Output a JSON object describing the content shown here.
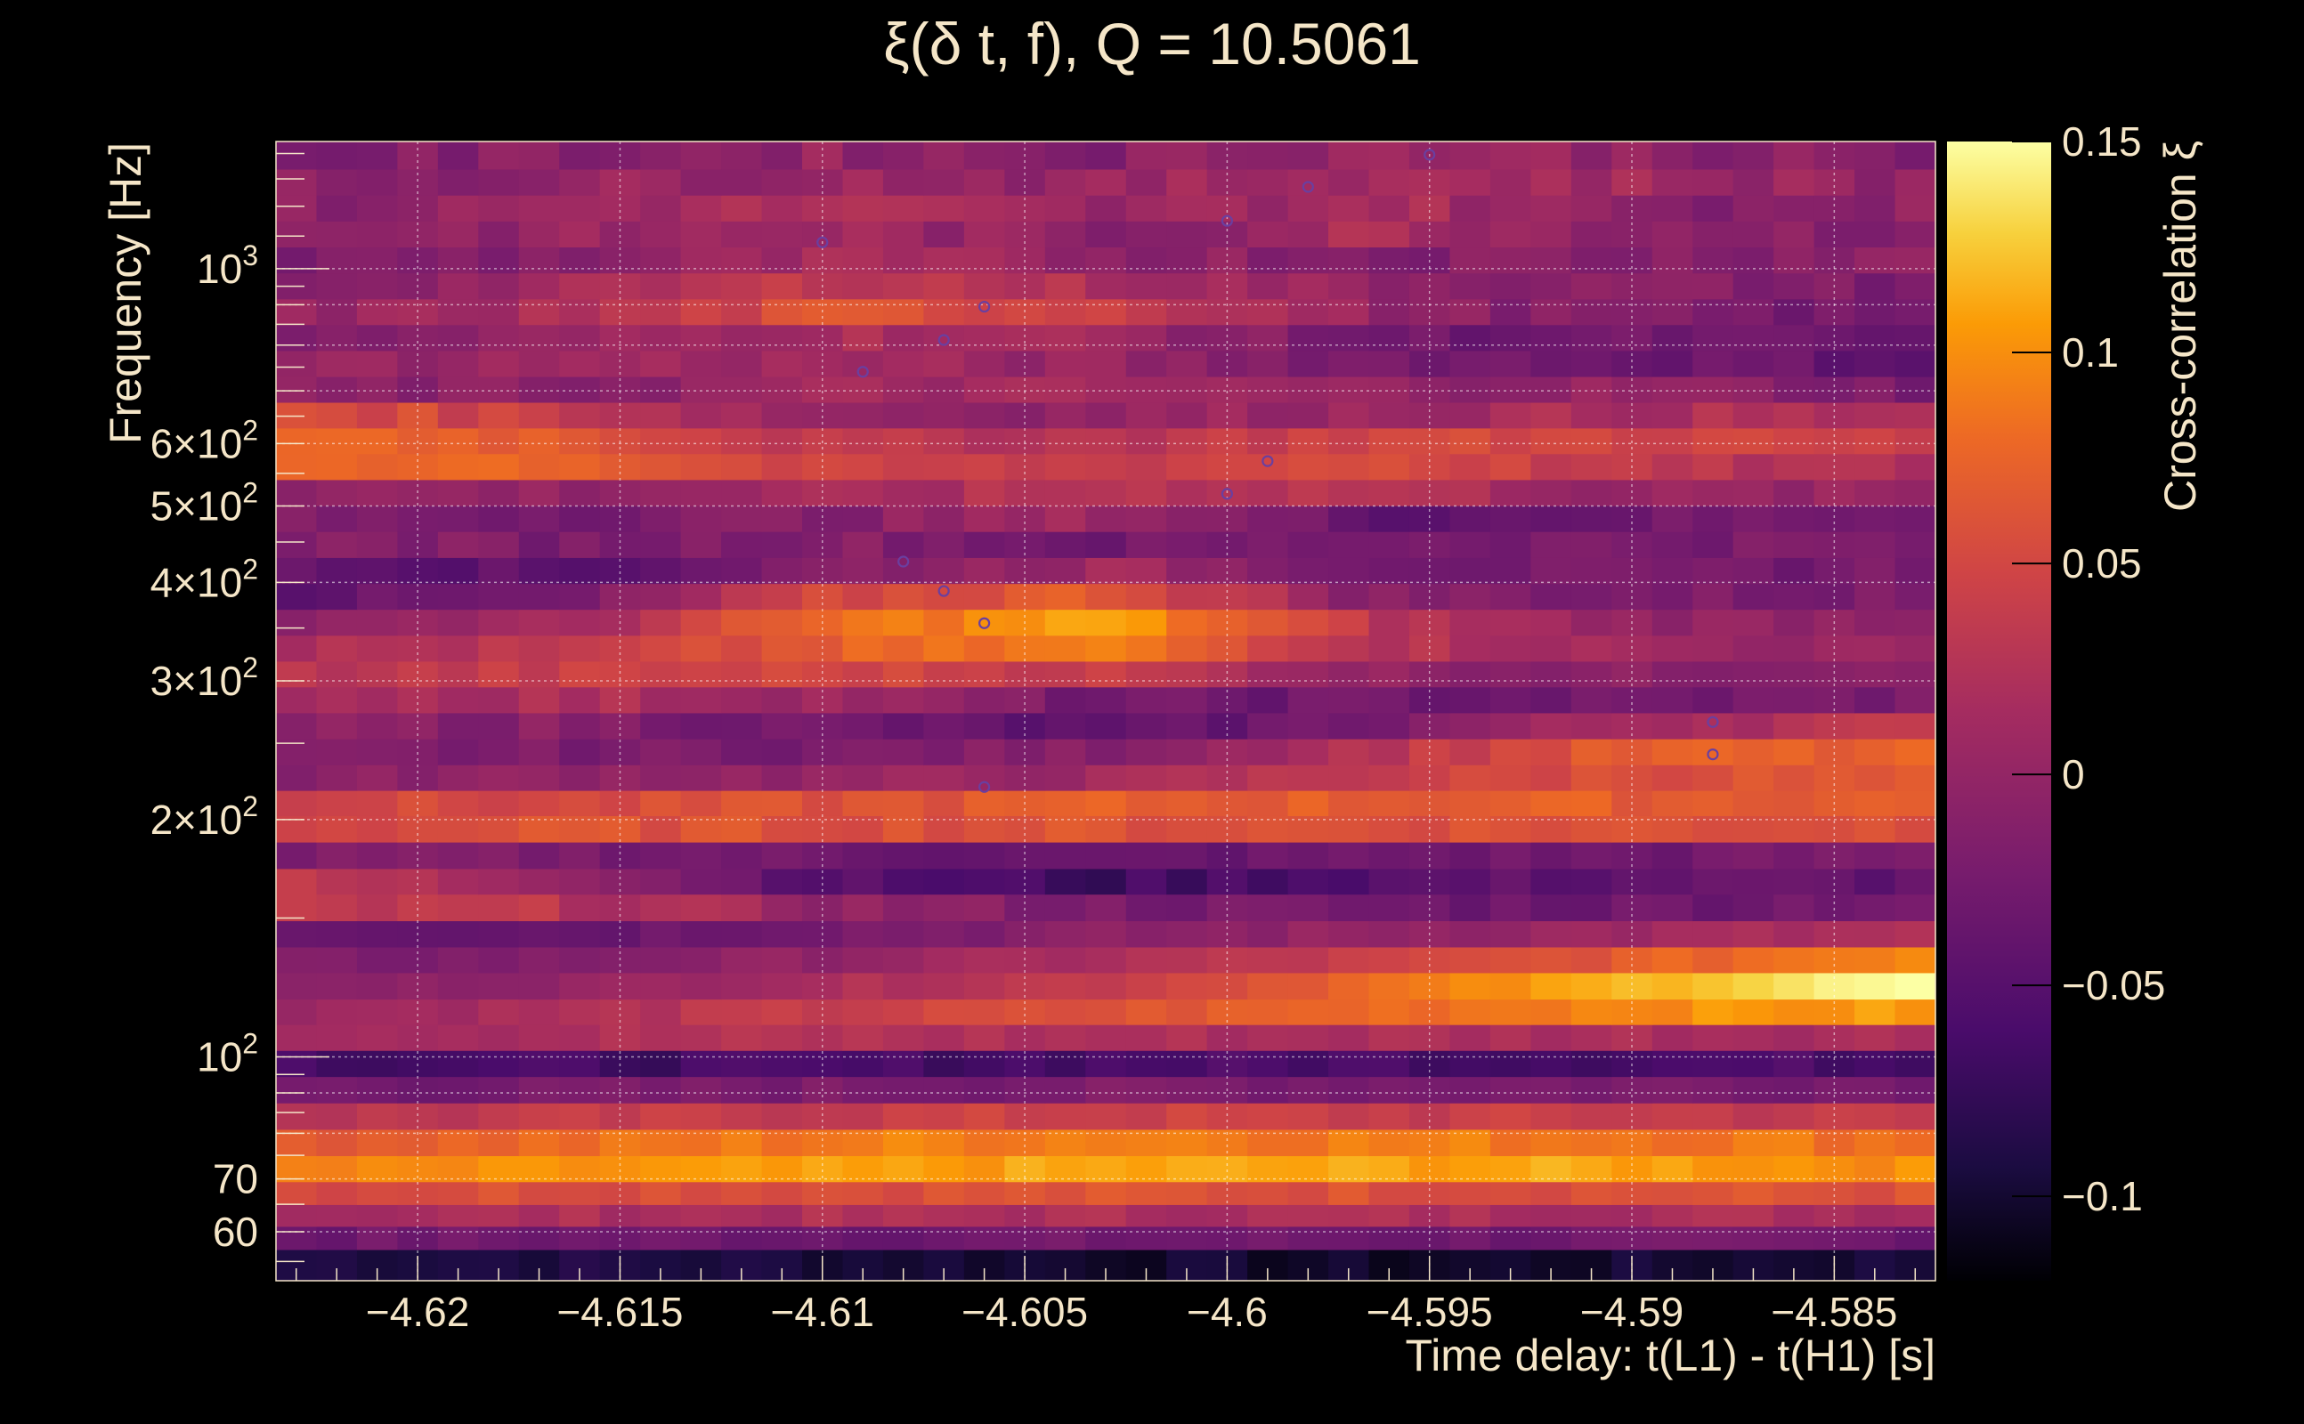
{
  "chart_data": {
    "type": "heatmap",
    "title": "ξ(δ t, f), Q = 10.5061",
    "xlabel": "Time delay: t(L1) - t(H1) [s]",
    "ylabel": "Frequency [Hz]",
    "colorbar_label": "Cross-correlation ξ",
    "xlim": [
      -4.6235,
      -4.5825
    ],
    "ylim": [
      52,
      1450
    ],
    "y_scale": "log",
    "clim": [
      -0.12,
      0.15
    ],
    "x_ticks": [
      {
        "value": -4.62,
        "label": "−4.62"
      },
      {
        "value": -4.615,
        "label": "−4.615"
      },
      {
        "value": -4.61,
        "label": "−4.61"
      },
      {
        "value": -4.605,
        "label": "−4.605"
      },
      {
        "value": -4.6,
        "label": "−4.6"
      },
      {
        "value": -4.595,
        "label": "−4.595"
      },
      {
        "value": -4.59,
        "label": "−4.59"
      },
      {
        "value": -4.585,
        "label": "−4.585"
      }
    ],
    "y_ticks": [
      {
        "value": 1000,
        "base": "10",
        "exp": "3",
        "mult": ""
      },
      {
        "value": 600,
        "base": "10",
        "exp": "2",
        "mult": "6×"
      },
      {
        "value": 500,
        "base": "10",
        "exp": "2",
        "mult": "5×"
      },
      {
        "value": 400,
        "base": "10",
        "exp": "2",
        "mult": "4×"
      },
      {
        "value": 300,
        "base": "10",
        "exp": "2",
        "mult": "3×"
      },
      {
        "value": 200,
        "base": "10",
        "exp": "2",
        "mult": "2×"
      },
      {
        "value": 100,
        "base": "10",
        "exp": "2",
        "mult": ""
      },
      {
        "value": 70,
        "base": "70",
        "exp": "",
        "mult": ""
      },
      {
        "value": 60,
        "base": "60",
        "exp": "",
        "mult": ""
      }
    ],
    "colorbar_ticks": [
      {
        "value": 0.15,
        "label": "0.15"
      },
      {
        "value": 0.1,
        "label": "0.1"
      },
      {
        "value": 0.05,
        "label": "0.05"
      },
      {
        "value": 0,
        "label": "0"
      },
      {
        "value": -0.05,
        "label": "−0.05"
      },
      {
        "value": -0.1,
        "label": "−0.1"
      }
    ],
    "grid": true,
    "colormap": "inferno",
    "row_profile": [
      {
        "f": 55,
        "xi": [
          -0.09,
          -0.09,
          -0.095,
          -0.1,
          -0.105,
          -0.1,
          -0.095
        ],
        "dither": 0.008
      },
      {
        "f": 59,
        "xi": [
          -0.03,
          -0.03,
          -0.03,
          -0.03,
          -0.03,
          -0.03,
          -0.03
        ],
        "dither": 0.01
      },
      {
        "f": 63,
        "xi": [
          0.015,
          0.02,
          0.02,
          0.02,
          0.02,
          0.02,
          0.02
        ],
        "dither": 0.01
      },
      {
        "f": 67,
        "xi": [
          0.055,
          0.06,
          0.06,
          0.06,
          0.06,
          0.06,
          0.06
        ],
        "dither": 0.01
      },
      {
        "f": 72,
        "xi": [
          0.09,
          0.1,
          0.105,
          0.11,
          0.11,
          0.11,
          0.1
        ],
        "dither": 0.008
      },
      {
        "f": 78,
        "xi": [
          0.07,
          0.08,
          0.09,
          0.095,
          0.09,
          0.09,
          0.085
        ],
        "dither": 0.01
      },
      {
        "f": 84,
        "xi": [
          0.03,
          0.035,
          0.04,
          0.045,
          0.04,
          0.04,
          0.035
        ],
        "dither": 0.01
      },
      {
        "f": 91,
        "xi": [
          -0.025,
          -0.025,
          -0.02,
          -0.02,
          -0.02,
          -0.02,
          -0.02
        ],
        "dither": 0.01
      },
      {
        "f": 98,
        "xi": [
          -0.06,
          -0.065,
          -0.065,
          -0.06,
          -0.06,
          -0.06,
          -0.06
        ],
        "dither": 0.01
      },
      {
        "f": 106,
        "xi": [
          0.02,
          0.02,
          0.025,
          0.02,
          0.02,
          0.02,
          0.02
        ],
        "dither": 0.01
      },
      {
        "f": 114,
        "xi": [
          0.01,
          0.02,
          0.04,
          0.06,
          0.08,
          0.1,
          0.105
        ],
        "dither": 0.008
      },
      {
        "f": 123,
        "xi": [
          -0.01,
          0.0,
          0.02,
          0.04,
          0.08,
          0.12,
          0.15
        ],
        "dither": 0.006
      },
      {
        "f": 133,
        "xi": [
          -0.02,
          -0.015,
          0.0,
          0.02,
          0.04,
          0.07,
          0.1
        ],
        "dither": 0.008
      },
      {
        "f": 143,
        "xi": [
          -0.03,
          -0.035,
          -0.02,
          -0.01,
          0.0,
          0.01,
          0.02
        ],
        "dither": 0.01
      },
      {
        "f": 155,
        "xi": [
          0.03,
          0.03,
          0.0,
          -0.02,
          -0.03,
          -0.03,
          -0.02
        ],
        "dither": 0.012
      },
      {
        "f": 167,
        "xi": [
          0.03,
          0.01,
          -0.05,
          -0.07,
          -0.05,
          -0.04,
          -0.04
        ],
        "dither": 0.012
      },
      {
        "f": 180,
        "xi": [
          -0.02,
          -0.02,
          -0.03,
          -0.04,
          -0.03,
          -0.03,
          -0.02
        ],
        "dither": 0.01
      },
      {
        "f": 195,
        "xi": [
          0.05,
          0.06,
          0.06,
          0.06,
          0.06,
          0.06,
          0.06
        ],
        "dither": 0.01
      },
      {
        "f": 210,
        "xi": [
          0.05,
          0.05,
          0.06,
          0.07,
          0.07,
          0.07,
          0.07
        ],
        "dither": 0.01
      },
      {
        "f": 226,
        "xi": [
          -0.01,
          0.0,
          0.0,
          0.01,
          0.04,
          0.06,
          0.06
        ],
        "dither": 0.01
      },
      {
        "f": 244,
        "xi": [
          -0.02,
          -0.02,
          -0.02,
          -0.01,
          0.03,
          0.07,
          0.07
        ],
        "dither": 0.01
      },
      {
        "f": 263,
        "xi": [
          -0.01,
          -0.01,
          -0.03,
          -0.05,
          -0.02,
          0.02,
          0.03
        ],
        "dither": 0.012
      },
      {
        "f": 284,
        "xi": [
          0.02,
          0.02,
          0.01,
          -0.03,
          -0.03,
          -0.03,
          -0.02
        ],
        "dither": 0.012
      },
      {
        "f": 306,
        "xi": [
          0.03,
          0.04,
          0.05,
          0.04,
          0.0,
          -0.01,
          0.0
        ],
        "dither": 0.01
      },
      {
        "f": 330,
        "xi": [
          0.02,
          0.03,
          0.07,
          0.09,
          0.03,
          0.01,
          0.0
        ],
        "dither": 0.01
      },
      {
        "f": 356,
        "xi": [
          0.0,
          0.01,
          0.08,
          0.11,
          0.03,
          0.0,
          0.0
        ],
        "dither": 0.01
      },
      {
        "f": 384,
        "xi": [
          -0.04,
          -0.03,
          0.05,
          0.07,
          -0.01,
          -0.02,
          -0.02
        ],
        "dither": 0.012
      },
      {
        "f": 414,
        "xi": [
          -0.03,
          -0.05,
          -0.01,
          0.01,
          -0.02,
          -0.03,
          -0.02
        ],
        "dither": 0.012
      },
      {
        "f": 447,
        "xi": [
          -0.01,
          -0.02,
          -0.01,
          -0.03,
          -0.02,
          -0.02,
          -0.02
        ],
        "dither": 0.012
      },
      {
        "f": 482,
        "xi": [
          -0.02,
          -0.02,
          -0.01,
          0.01,
          -0.04,
          -0.03,
          -0.02
        ],
        "dither": 0.012
      },
      {
        "f": 520,
        "xi": [
          0.0,
          0.0,
          0.01,
          0.03,
          0.03,
          0.0,
          0.0
        ],
        "dither": 0.012
      },
      {
        "f": 561,
        "xi": [
          0.08,
          0.08,
          0.04,
          0.04,
          0.06,
          0.03,
          0.02
        ],
        "dither": 0.01
      },
      {
        "f": 605,
        "xi": [
          0.08,
          0.07,
          0.03,
          0.03,
          0.05,
          0.05,
          0.04
        ],
        "dither": 0.01
      },
      {
        "f": 652,
        "xi": [
          0.06,
          0.04,
          0.0,
          0.0,
          0.01,
          0.02,
          0.02
        ],
        "dither": 0.012
      },
      {
        "f": 703,
        "xi": [
          -0.01,
          -0.01,
          0.01,
          0.01,
          0.0,
          0.0,
          -0.02
        ],
        "dither": 0.012
      },
      {
        "f": 758,
        "xi": [
          0.0,
          0.01,
          0.01,
          0.0,
          -0.02,
          -0.03,
          -0.04
        ],
        "dither": 0.012
      },
      {
        "f": 818,
        "xi": [
          -0.02,
          0.0,
          0.02,
          0.01,
          -0.03,
          -0.03,
          -0.04
        ],
        "dither": 0.012
      },
      {
        "f": 882,
        "xi": [
          0.0,
          0.02,
          0.06,
          0.05,
          0.0,
          -0.02,
          -0.03
        ],
        "dither": 0.012
      },
      {
        "f": 951,
        "xi": [
          -0.01,
          0.01,
          0.04,
          0.02,
          0.0,
          -0.01,
          -0.02
        ],
        "dither": 0.012
      },
      {
        "f": 1026,
        "xi": [
          -0.02,
          -0.01,
          0.01,
          0.0,
          -0.01,
          -0.01,
          0.0
        ],
        "dither": 0.015
      },
      {
        "f": 1107,
        "xi": [
          0.0,
          0.0,
          0.01,
          -0.01,
          0.02,
          0.0,
          -0.01
        ],
        "dither": 0.015
      },
      {
        "f": 1194,
        "xi": [
          -0.01,
          0.01,
          0.02,
          0.0,
          0.02,
          -0.01,
          0.0
        ],
        "dither": 0.015
      },
      {
        "f": 1288,
        "xi": [
          -0.01,
          0.0,
          0.01,
          0.0,
          0.02,
          0.01,
          0.0
        ],
        "dither": 0.015
      },
      {
        "f": 1390,
        "xi": [
          -0.02,
          -0.01,
          0.0,
          -0.01,
          0.01,
          0.0,
          -0.02
        ],
        "dither": 0.015
      }
    ],
    "markers": [
      {
        "x": -4.6,
        "y": 1150
      },
      {
        "x": -4.598,
        "y": 1270
      },
      {
        "x": -4.595,
        "y": 1395
      },
      {
        "x": -4.61,
        "y": 1080
      },
      {
        "x": -4.606,
        "y": 895
      },
      {
        "x": -4.607,
        "y": 812
      },
      {
        "x": -4.609,
        "y": 740
      },
      {
        "x": -4.599,
        "y": 570
      },
      {
        "x": -4.6,
        "y": 518
      },
      {
        "x": -4.608,
        "y": 425
      },
      {
        "x": -4.607,
        "y": 390
      },
      {
        "x": -4.606,
        "y": 355
      },
      {
        "x": -4.588,
        "y": 266
      },
      {
        "x": -4.588,
        "y": 242
      },
      {
        "x": -4.606,
        "y": 220
      }
    ]
  }
}
